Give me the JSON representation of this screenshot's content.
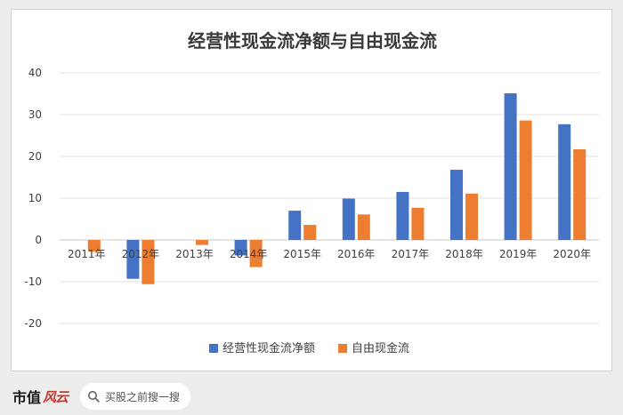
{
  "chart_data": {
    "type": "bar",
    "title": "经营性现金流净额与自由现金流",
    "categories": [
      "2011年",
      "2012年",
      "2013年",
      "2014年",
      "2015年",
      "2016年",
      "2017年",
      "2018年",
      "2019年",
      "2020年"
    ],
    "series": [
      {
        "name": "经营性现金流净额",
        "color": "#4472c4",
        "values": [
          0,
          -9.3,
          0,
          -3.7,
          7.0,
          9.9,
          11.5,
          16.8,
          35.1,
          27.7
        ]
      },
      {
        "name": "自由现金流",
        "color": "#ed7d31",
        "values": [
          -2.8,
          -10.6,
          -1.2,
          -6.5,
          3.6,
          6.1,
          7.7,
          11.1,
          28.6,
          21.7
        ]
      }
    ],
    "y_ticks": [
      40,
      30,
      20,
      10,
      0,
      -10,
      -20
    ],
    "ylim": [
      -20,
      40
    ],
    "legend_position": "bottom",
    "grid": true
  },
  "footer": {
    "brand_text": "市值",
    "brand_logo_text": "风云",
    "search_label": "买股之前搜一搜"
  }
}
